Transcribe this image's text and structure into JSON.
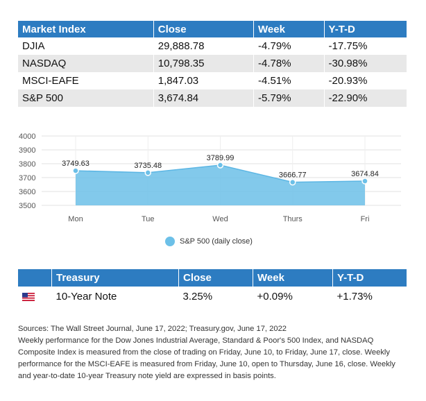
{
  "market": {
    "headers": [
      "Market Index",
      "Close",
      "Week",
      "Y-T-D"
    ],
    "rows": [
      [
        "DJIA",
        "29,888.78",
        "-4.79%",
        "-17.75%"
      ],
      [
        "NASDAQ",
        "10,798.35",
        "-4.78%",
        "-30.98%"
      ],
      [
        "MSCI-EAFE",
        "1,847.03",
        "-4.51%",
        "-20.93%"
      ],
      [
        "S&P 500",
        "3,674.84",
        "-5.79%",
        "-22.90%"
      ]
    ]
  },
  "chart_data": {
    "type": "area",
    "categories": [
      "Mon",
      "Tue",
      "Wed",
      "Thurs",
      "Fri"
    ],
    "series": [
      {
        "name": "S&P 500 (daily close)",
        "values": [
          3749.63,
          3735.48,
          3789.99,
          3666.77,
          3674.84
        ]
      }
    ],
    "data_labels": [
      "3749.63",
      "3735.48",
      "3789.99",
      "3666.77",
      "3674.84"
    ],
    "yticks": [
      "4000",
      "3900",
      "3800",
      "3700",
      "3600",
      "3500"
    ],
    "ylim": [
      3500,
      4000
    ],
    "grid": true,
    "legend_position": "bottom",
    "color": "#6cc0e8"
  },
  "treasury": {
    "headers": [
      "Treasury",
      "Close",
      "Week",
      "Y-T-D"
    ],
    "row": {
      "flag_icon": "us-flag-icon",
      "name": "10-Year Note",
      "close": "3.25%",
      "week": "+0.09%",
      "ytd": "+1.73%"
    }
  },
  "sources": {
    "line1": "Sources: The Wall Street Journal, June 17, 2022; Treasury.gov, June 17, 2022",
    "body": "Weekly performance for the Dow Jones Industrial Average, Standard & Poor's 500 Index, and NASDAQ Composite Index is measured from the close of trading on Friday, June 10, to Friday, June 17, close. Weekly performance for the MSCI-EAFE is measured from Friday, June 10, open to Thursday, June 16, close. Weekly and year-to-date 10-year Treasury note yield are expressed in basis points."
  }
}
